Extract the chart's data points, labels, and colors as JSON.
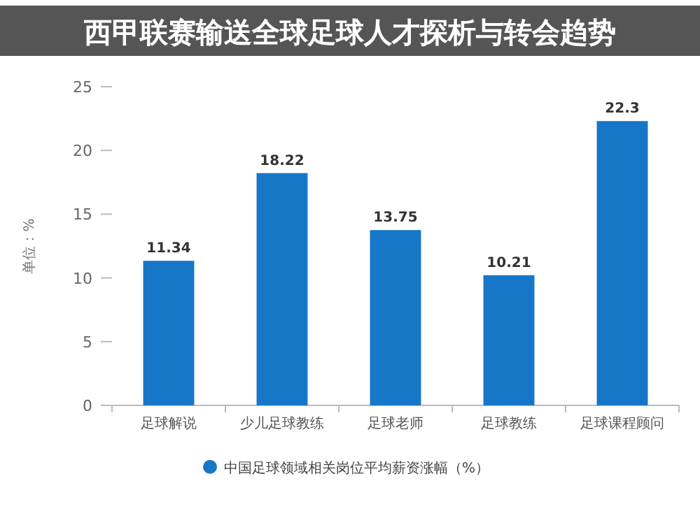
{
  "chart_data": {
    "type": "bar",
    "title": "西甲联赛输送全球足球人才探析与转会趋势",
    "ylabel": "单位：%",
    "categories": [
      "足球解说",
      "少儿足球教练",
      "足球老师",
      "足球教练",
      "足球课程顾问"
    ],
    "series": [
      {
        "name": "中国足球领域相关岗位平均薪资涨幅（%）",
        "color": "#1677c9",
        "values": [
          11.34,
          18.22,
          13.75,
          10.21,
          22.3
        ]
      }
    ],
    "value_labels": [
      "11.34",
      "18.22",
      "13.75",
      "10.21",
      "22.3"
    ],
    "ylim": [
      0,
      25
    ],
    "yticks": [
      0,
      5,
      10,
      15,
      20,
      25
    ],
    "grid": false,
    "legend": "bottom"
  }
}
